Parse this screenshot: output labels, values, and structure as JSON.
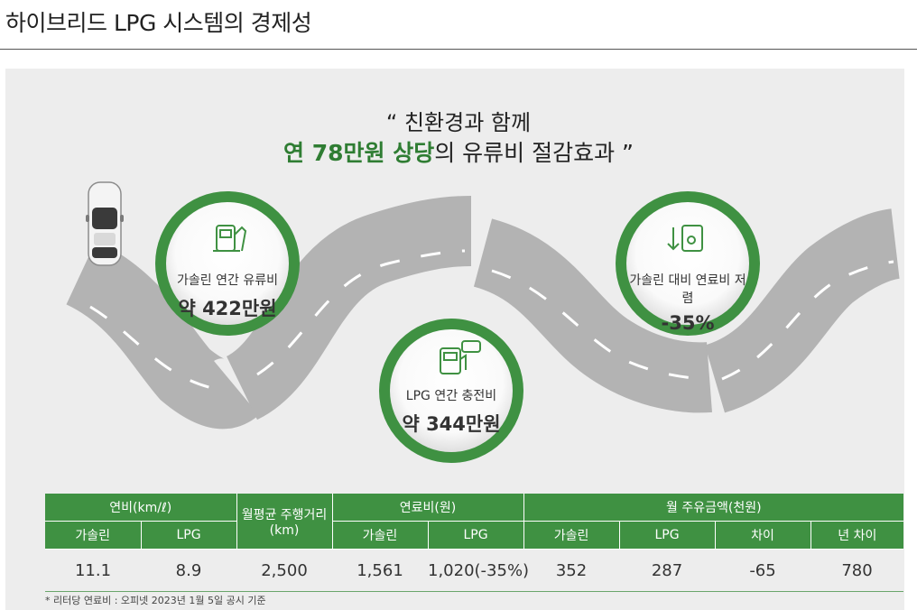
{
  "page": {
    "title": "하이브리드 LPG 시스템의 경제성"
  },
  "headline": {
    "line1": "“ 친환경과 함께",
    "line2_em": "연 78만원 상당",
    "line2_rest": "의 유류비 절감효과 ”"
  },
  "circles": [
    {
      "icon": "gas-pump-icon",
      "label": "가솔린 연간 유류비",
      "value": "약 422만원"
    },
    {
      "icon": "lpg-pump-icon",
      "label": "LPG 연간 충전비",
      "value": "약 344만원"
    },
    {
      "icon": "cost-down-icon",
      "label": "가솔린 대비 연료비 저렴",
      "value": "-35%"
    }
  ],
  "table": {
    "group_headers": {
      "fuel_efficiency": "연비(km/ℓ)",
      "monthly_distance": "월평균 주행거리 (km)",
      "fuel_price": "연료비(원)",
      "monthly_cost": "월 주유금액(천원)"
    },
    "sub_headers": [
      "가솔린",
      "LPG",
      "가솔린",
      "LPG",
      "가솔린",
      "LPG",
      "차이",
      "년 차이"
    ],
    "row": [
      "11.1",
      "8.9",
      "2,500",
      "1,561",
      "1,020(-35%)",
      "352",
      "287",
      "-65",
      "780"
    ]
  },
  "footnote": "* 리터당 연료비 : 오피넷 2023년 1월 5일 공시 기준",
  "colors": {
    "green": "#3f9142",
    "accent_text": "#2f7d33",
    "road": "#b3b3b3",
    "panel": "#ededed"
  }
}
